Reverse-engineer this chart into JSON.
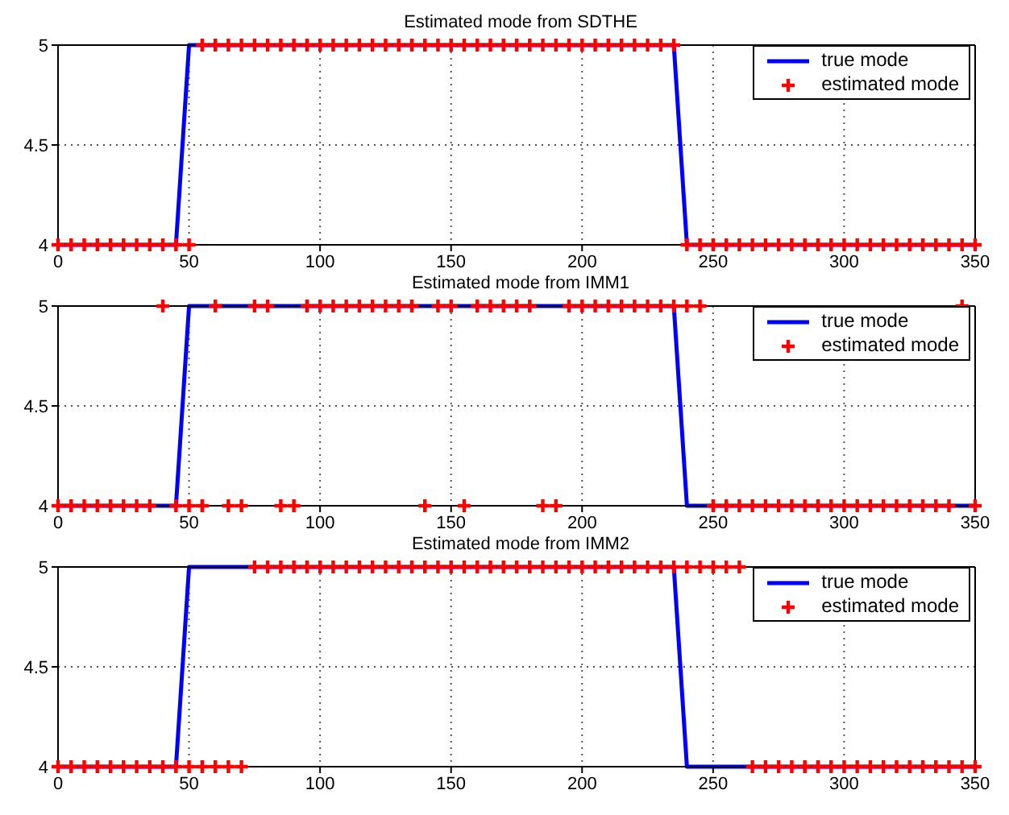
{
  "chart_data": [
    {
      "type": "line",
      "title": "Estimated mode from SDTHE",
      "x": [
        0,
        5,
        10,
        15,
        20,
        25,
        30,
        35,
        40,
        45,
        50,
        55,
        60,
        65,
        70,
        75,
        80,
        85,
        90,
        95,
        100,
        105,
        110,
        115,
        120,
        125,
        130,
        135,
        140,
        145,
        150,
        155,
        160,
        165,
        170,
        175,
        180,
        185,
        190,
        195,
        200,
        205,
        210,
        215,
        220,
        225,
        230,
        235,
        240,
        245,
        250,
        255,
        260,
        265,
        270,
        275,
        280,
        285,
        290,
        295,
        300,
        305,
        310,
        315,
        320,
        325,
        330,
        335,
        340,
        345,
        350
      ],
      "xlim": [
        0,
        350
      ],
      "xticks": [
        0,
        50,
        100,
        150,
        200,
        250,
        300,
        350
      ],
      "ylim": [
        4,
        5
      ],
      "yticks": [
        4,
        4.5,
        5
      ],
      "grid": true,
      "legend": "top right",
      "series": [
        {
          "name": "true mode",
          "color": "#0000ff",
          "x": [
            0,
            45,
            50,
            235,
            240,
            350
          ],
          "values": [
            4,
            4,
            5,
            5,
            4,
            4
          ]
        },
        {
          "name": "estimated mode",
          "type": "scatter",
          "color": "#ff0000",
          "marker": "cross",
          "values": [
            4,
            4,
            4,
            4,
            4,
            4,
            4,
            4,
            4,
            4,
            4,
            5,
            5,
            5,
            5,
            5,
            5,
            5,
            5,
            5,
            5,
            5,
            5,
            5,
            5,
            5,
            5,
            5,
            5,
            5,
            5,
            5,
            5,
            5,
            5,
            5,
            5,
            5,
            5,
            5,
            5,
            5,
            5,
            5,
            5,
            5,
            5,
            5,
            4,
            4,
            4,
            4,
            4,
            4,
            4,
            4,
            4,
            4,
            4,
            4,
            4,
            4,
            4,
            4,
            4,
            4,
            4,
            4,
            4,
            4,
            4
          ]
        }
      ]
    },
    {
      "type": "line",
      "title": "Estimated mode from IMM1",
      "x": [
        0,
        5,
        10,
        15,
        20,
        25,
        30,
        35,
        40,
        45,
        50,
        55,
        60,
        65,
        70,
        75,
        80,
        85,
        90,
        95,
        100,
        105,
        110,
        115,
        120,
        125,
        130,
        135,
        140,
        145,
        150,
        155,
        160,
        165,
        170,
        175,
        180,
        185,
        190,
        195,
        200,
        205,
        210,
        215,
        220,
        225,
        230,
        235,
        240,
        245,
        250,
        255,
        260,
        265,
        270,
        275,
        280,
        285,
        290,
        295,
        300,
        305,
        310,
        315,
        320,
        325,
        330,
        335,
        340,
        345,
        350
      ],
      "xlim": [
        0,
        350
      ],
      "xticks": [
        0,
        50,
        100,
        150,
        200,
        250,
        300,
        350
      ],
      "ylim": [
        4,
        5
      ],
      "yticks": [
        4,
        4.5,
        5
      ],
      "grid": true,
      "legend": "top right",
      "series": [
        {
          "name": "true mode",
          "color": "#0000ff",
          "x": [
            0,
            45,
            50,
            235,
            240,
            350
          ],
          "values": [
            4,
            4,
            5,
            5,
            4,
            4
          ]
        },
        {
          "name": "estimated mode",
          "type": "scatter",
          "color": "#ff0000",
          "marker": "cross",
          "values": [
            4,
            4,
            4,
            4,
            4,
            4,
            4,
            4,
            5,
            4,
            4,
            4,
            5,
            4,
            4,
            5,
            5,
            4,
            4,
            5,
            5,
            5,
            5,
            5,
            5,
            5,
            5,
            5,
            4,
            5,
            5,
            4,
            5,
            5,
            5,
            5,
            5,
            4,
            4,
            5,
            5,
            5,
            5,
            5,
            5,
            5,
            5,
            5,
            5,
            5,
            4,
            4,
            4,
            4,
            4,
            4,
            4,
            4,
            4,
            4,
            4,
            4,
            4,
            4,
            4,
            4,
            4,
            4,
            4,
            5,
            4
          ]
        }
      ]
    },
    {
      "type": "line",
      "title": "Estimated mode from IMM2",
      "x": [
        0,
        5,
        10,
        15,
        20,
        25,
        30,
        35,
        40,
        45,
        50,
        55,
        60,
        65,
        70,
        75,
        80,
        85,
        90,
        95,
        100,
        105,
        110,
        115,
        120,
        125,
        130,
        135,
        140,
        145,
        150,
        155,
        160,
        165,
        170,
        175,
        180,
        185,
        190,
        195,
        200,
        205,
        210,
        215,
        220,
        225,
        230,
        235,
        240,
        245,
        250,
        255,
        260,
        265,
        270,
        275,
        280,
        285,
        290,
        295,
        300,
        305,
        310,
        315,
        320,
        325,
        330,
        335,
        340,
        345,
        350
      ],
      "xlim": [
        0,
        350
      ],
      "xticks": [
        0,
        50,
        100,
        150,
        200,
        250,
        300,
        350
      ],
      "ylim": [
        4,
        5
      ],
      "yticks": [
        4,
        4.5,
        5
      ],
      "grid": true,
      "legend": "top right",
      "series": [
        {
          "name": "true mode",
          "color": "#0000ff",
          "x": [
            0,
            45,
            50,
            235,
            240,
            350
          ],
          "values": [
            4,
            4,
            5,
            5,
            4,
            4
          ]
        },
        {
          "name": "estimated mode",
          "type": "scatter",
          "color": "#ff0000",
          "marker": "cross",
          "values": [
            4,
            4,
            4,
            4,
            4,
            4,
            4,
            4,
            4,
            4,
            4,
            4,
            4,
            4,
            4,
            5,
            5,
            5,
            5,
            5,
            5,
            5,
            5,
            5,
            5,
            5,
            5,
            5,
            5,
            5,
            5,
            5,
            5,
            5,
            5,
            5,
            5,
            5,
            5,
            5,
            5,
            5,
            5,
            5,
            5,
            5,
            5,
            5,
            5,
            5,
            5,
            5,
            5,
            4,
            4,
            4,
            4,
            4,
            4,
            4,
            4,
            4,
            4,
            4,
            4,
            4,
            4,
            4,
            4,
            4,
            4
          ]
        }
      ]
    }
  ]
}
